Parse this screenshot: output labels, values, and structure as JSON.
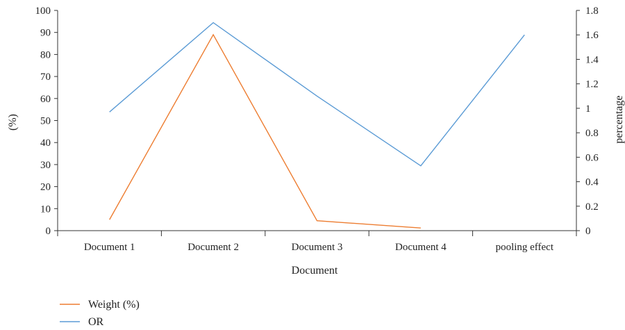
{
  "chart_data": {
    "type": "line",
    "categories": [
      "Document 1",
      "Document 2",
      "Document 3",
      "Document 4",
      "pooling effect"
    ],
    "xlabel": "Document",
    "ylabel_left": "(%)",
    "ylabel_right": "percentage",
    "ylim_left": [
      0,
      100
    ],
    "ylim_right": [
      0,
      1.8
    ],
    "yticks_left": [
      "0",
      "10",
      "20",
      "30",
      "40",
      "50",
      "60",
      "70",
      "80",
      "90",
      "100"
    ],
    "yticks_right": [
      "0",
      "0.2",
      "0.4",
      "0.6",
      "0.8",
      "1",
      "1.2",
      "1.4",
      "1.6",
      "1.8"
    ],
    "grid": false,
    "legend_position": "bottom-left",
    "series": [
      {
        "name": "Weight (%)",
        "axis": "left",
        "color": "#ED7D31",
        "values": [
          5,
          89,
          4.5,
          1.2,
          null
        ]
      },
      {
        "name": "OR",
        "axis": "right",
        "color": "#5B9BD5",
        "values": [
          0.97,
          1.7,
          1.1,
          0.53,
          1.6
        ]
      }
    ]
  }
}
